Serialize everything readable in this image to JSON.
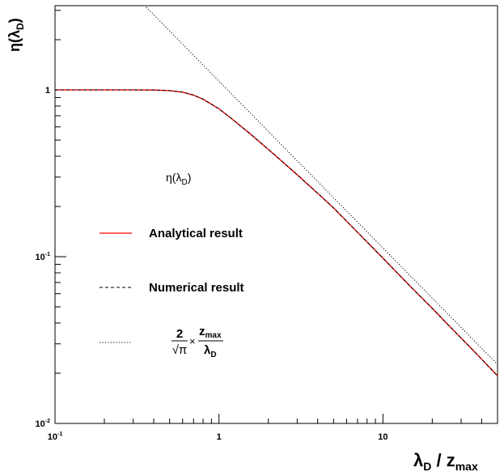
{
  "chart_data": {
    "type": "line",
    "title": "",
    "xlabel": "λD / zmax",
    "ylabel": "η(λD)",
    "x_scale": "log",
    "y_scale": "log",
    "xlim": [
      0.1,
      50
    ],
    "ylim": [
      0.01,
      3.2
    ],
    "x_ticks": [
      {
        "value": 0.1,
        "base": "10",
        "exp": "-1"
      },
      {
        "value": 1,
        "base": "1",
        "exp": ""
      },
      {
        "value": 10,
        "base": "10",
        "exp": ""
      }
    ],
    "y_ticks": [
      {
        "value": 0.01,
        "base": "10",
        "exp": "-2"
      },
      {
        "value": 0.1,
        "base": "10",
        "exp": "-1"
      },
      {
        "value": 1,
        "base": "1",
        "exp": ""
      }
    ],
    "grid": false,
    "legend": {
      "title": "η(λD)",
      "placement": "center-left",
      "entries": [
        {
          "label": "Analytical result",
          "style": "solid",
          "color": "#ff0000"
        },
        {
          "label": "Numerical result",
          "style": "dashed",
          "color": "#000000"
        },
        {
          "label": "2/√π × zmax/λD",
          "style": "dotted",
          "color": "#000000"
        }
      ]
    },
    "series": [
      {
        "name": "Analytical result",
        "style": "solid",
        "color": "#ff0000",
        "x": [
          0.1,
          0.15,
          0.2,
          0.3,
          0.4,
          0.5,
          0.6,
          0.7,
          0.8,
          0.9,
          1.0,
          1.2,
          1.5,
          2,
          3,
          4,
          5,
          7,
          10,
          15,
          20,
          25,
          30,
          35,
          40,
          45,
          50
        ],
        "y": [
          1.0,
          1.0,
          1.0,
          1.0,
          0.998,
          0.99,
          0.97,
          0.93,
          0.88,
          0.82,
          0.77,
          0.67,
          0.56,
          0.44,
          0.31,
          0.24,
          0.196,
          0.14,
          0.098,
          0.065,
          0.049,
          0.039,
          0.0325,
          0.0278,
          0.0243,
          0.0215,
          0.0193
        ]
      },
      {
        "name": "Numerical result",
        "style": "dashed",
        "color": "#000000",
        "x": [
          0.1,
          0.15,
          0.2,
          0.3,
          0.4,
          0.5,
          0.6,
          0.7,
          0.8,
          0.9,
          1.0,
          1.2,
          1.5,
          2,
          3,
          4,
          5,
          7,
          10,
          15,
          20,
          25,
          30,
          35,
          40,
          45,
          50
        ],
        "y": [
          1.0,
          1.0,
          1.0,
          1.0,
          0.998,
          0.99,
          0.97,
          0.93,
          0.88,
          0.82,
          0.77,
          0.67,
          0.56,
          0.44,
          0.31,
          0.24,
          0.196,
          0.14,
          0.098,
          0.065,
          0.049,
          0.039,
          0.0325,
          0.0278,
          0.0243,
          0.0215,
          0.0193
        ]
      },
      {
        "name": "2/√π × zmax/λD",
        "style": "dotted",
        "color": "#000000",
        "x": [
          0.35,
          0.5,
          0.7,
          1,
          1.5,
          2,
          3,
          5,
          7,
          10,
          15,
          20,
          30,
          40,
          50
        ],
        "y": [
          3.224,
          2.257,
          1.612,
          1.128,
          0.752,
          0.564,
          0.376,
          0.2257,
          0.1612,
          0.1128,
          0.0752,
          0.0564,
          0.0376,
          0.0282,
          0.0226
        ]
      }
    ]
  }
}
